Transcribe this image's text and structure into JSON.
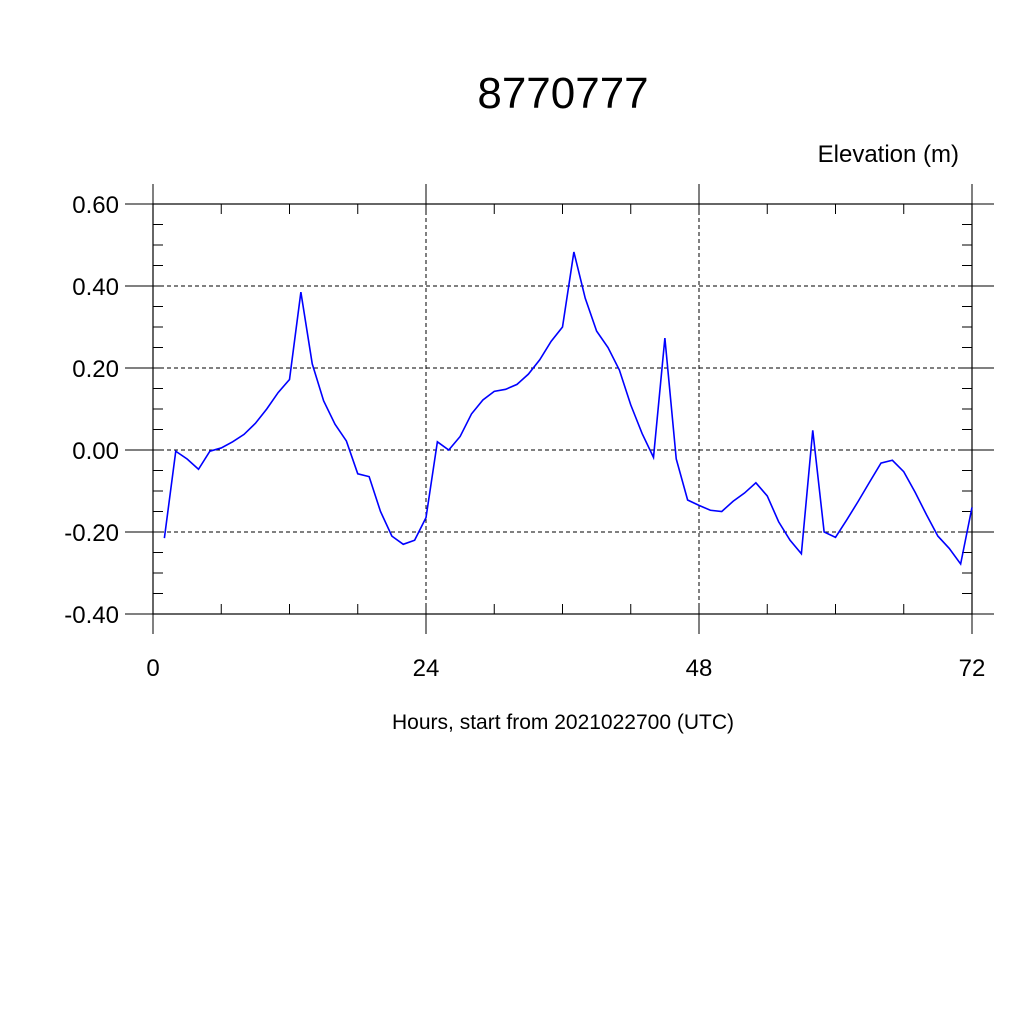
{
  "chart_data": {
    "type": "line",
    "title": "8770777",
    "ylabel": "Elevation (m)",
    "xlabel": "Hours, start from 2021022700 (UTC)",
    "xlim": [
      0,
      72
    ],
    "ylim": [
      -0.4,
      0.6
    ],
    "xticks": [
      0,
      24,
      48,
      72
    ],
    "xtick_labels": [
      "0",
      "24",
      "48",
      "72"
    ],
    "yticks": [
      -0.4,
      -0.2,
      0.0,
      0.2,
      0.4,
      0.6
    ],
    "ytick_labels": [
      "-0.40",
      "-0.20",
      "0.00",
      "0.20",
      "0.40",
      "0.60"
    ],
    "grid": true,
    "line_color": "#0000ff",
    "series": [
      {
        "x": [
          1,
          2,
          3,
          4,
          5,
          6,
          7,
          8,
          9,
          10,
          11,
          12,
          13,
          14,
          15,
          16,
          17,
          18,
          19,
          20,
          21,
          22,
          23,
          24,
          25,
          26,
          27,
          28,
          29,
          30,
          31,
          32,
          33,
          34,
          35,
          36,
          37,
          38,
          39,
          40,
          41,
          42,
          43,
          44,
          45,
          46,
          47,
          48,
          49,
          50,
          51,
          52,
          53,
          54,
          55,
          56,
          57,
          58,
          59,
          60,
          61,
          62,
          63,
          64,
          65,
          66,
          67,
          68,
          69,
          70,
          71,
          72
        ],
        "values": [
          -0.215,
          -0.003,
          -0.022,
          -0.047,
          -0.003,
          0.005,
          0.02,
          0.038,
          0.065,
          0.1,
          0.14,
          0.172,
          0.385,
          0.21,
          0.12,
          0.063,
          0.022,
          -0.058,
          -0.065,
          -0.15,
          -0.21,
          -0.23,
          -0.22,
          -0.165,
          0.02,
          0.0,
          0.033,
          0.088,
          0.122,
          0.143,
          0.148,
          0.16,
          0.185,
          0.22,
          0.265,
          0.3,
          0.483,
          0.37,
          0.29,
          0.25,
          0.195,
          0.11,
          0.04,
          -0.018,
          0.273,
          -0.022,
          -0.122,
          -0.135,
          -0.147,
          -0.15,
          -0.125,
          -0.105,
          -0.08,
          -0.112,
          -0.175,
          -0.22,
          -0.253,
          0.048,
          -0.2,
          -0.213,
          -0.17,
          -0.125,
          -0.078,
          -0.032,
          -0.025,
          -0.053,
          -0.103,
          -0.158,
          -0.21,
          -0.24,
          -0.278,
          -0.14
        ]
      }
    ]
  }
}
